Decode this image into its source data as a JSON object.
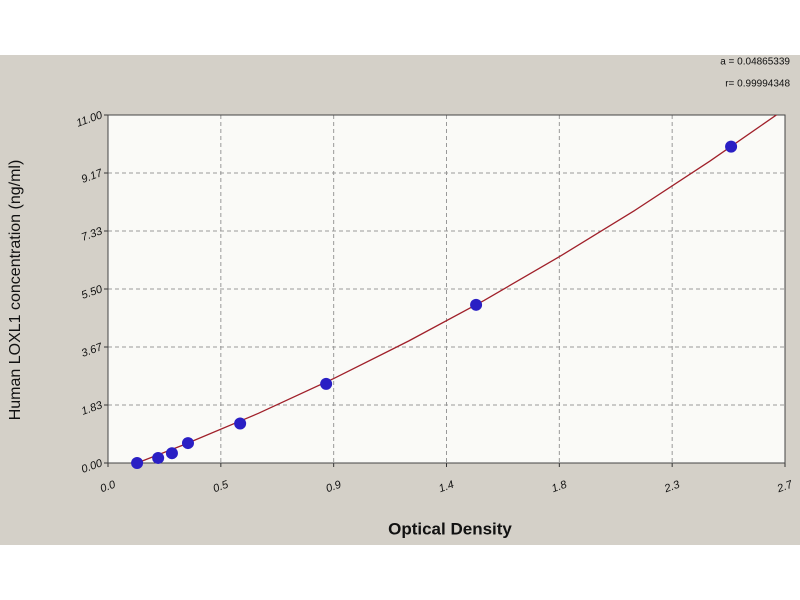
{
  "chart_data": {
    "type": "scatter",
    "xlabel": "Optical Density",
    "ylabel": "Human LOXL1 concentration (ng/ml)",
    "annotations": [
      "a = 0.04865339",
      "r= 0.99994348"
    ],
    "xlim": [
      0,
      2.7
    ],
    "ylim": [
      0,
      11
    ],
    "xticks": [
      {
        "value": 0,
        "label": "0.0"
      },
      {
        "value": 0.45,
        "label": "0.5"
      },
      0.9,
      {
        "value": 1.35,
        "label": "1.4"
      },
      1.8,
      {
        "value": 2.25,
        "label": "2.3"
      },
      2.7
    ],
    "yticks": [
      {
        "value": 0,
        "label": "0.00"
      },
      {
        "value": 1.833,
        "label": "1.83"
      },
      {
        "value": 3.667,
        "label": "3.67"
      },
      {
        "value": 5.5,
        "label": "5.50"
      },
      {
        "value": 7.333,
        "label": "7.33"
      },
      {
        "value": 9.167,
        "label": "9.17"
      },
      {
        "value": 11,
        "label": "11.00"
      }
    ],
    "grid": true,
    "series": [
      {
        "color": "#2a1fc4",
        "x": [
          0.116,
          0.2,
          0.255,
          0.319,
          0.527,
          0.87,
          1.468,
          2.485
        ],
        "values": [
          0,
          0.16,
          0.31,
          0.63,
          1.25,
          2.5,
          5,
          10
        ]
      },
      {
        "color": "#a0202a",
        "x": [
          0.12,
          0.3,
          0.6,
          0.9,
          1.2,
          1.5,
          1.8,
          2.1,
          2.4,
          2.7
        ],
        "values": [
          0.012,
          0.57,
          1.57,
          2.67,
          3.86,
          5.14,
          6.52,
          7.98,
          9.54,
          11.19
        ]
      }
    ]
  }
}
